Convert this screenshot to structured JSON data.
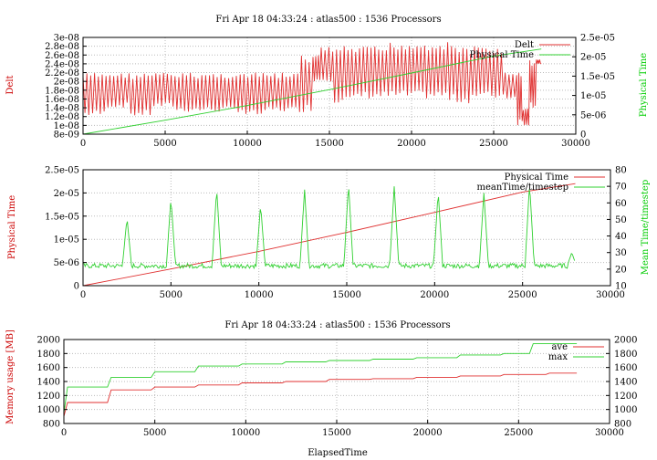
{
  "chart_data": [
    {
      "type": "line",
      "title": "Fri Apr 18 04:33:24 : atlas500 : 1536 Processors",
      "xlabel": "",
      "xlim": [
        0,
        30000
      ],
      "xticks": [
        "0",
        "5000",
        "10000",
        "15000",
        "20000",
        "25000",
        "30000"
      ],
      "ylabel": "Delt",
      "ylabel_color": "#cc0000",
      "ylim": [
        8e-09,
        3e-08
      ],
      "yticks": [
        "3e-08",
        "2.8e-08",
        "2.6e-08",
        "2.4e-08",
        "2.2e-08",
        "2e-08",
        "1.8e-08",
        "1.6e-08",
        "1.4e-08",
        "1.2e-08",
        "1e-08",
        "8e-09"
      ],
      "y2label": "Physical Time",
      "y2label_color": "#00cc00",
      "y2lim": [
        0,
        2.5e-05
      ],
      "y2ticks": [
        "2.5e-05",
        "2e-05",
        "1.5e-05",
        "1e-05",
        "5e-06",
        "0"
      ],
      "grid": true,
      "legend_position": "top-right",
      "series": [
        {
          "name": "Delt",
          "axis": "left",
          "color": "#e03030",
          "x": [
            0,
            700,
            1400,
            2100,
            2800,
            3500,
            4200,
            4900,
            5600,
            6300,
            7000,
            7700,
            8400,
            9100,
            9800,
            10500,
            11200,
            11900,
            12600,
            13300,
            14000,
            14500,
            15200,
            15900,
            16600,
            17300,
            18000,
            18700,
            19400,
            20100,
            20800,
            21500,
            22200,
            22900,
            23600,
            24300,
            25000,
            25700,
            26400,
            26800,
            27200,
            27600,
            27900
          ],
          "values": [
            2.2e-08,
            1.2e-08,
            2.2e-08,
            1.4e-08,
            2.2e-08,
            1.2e-08,
            2.2e-08,
            1.4e-08,
            2.2e-08,
            1.3e-08,
            2.2e-08,
            1.3e-08,
            2.2e-08,
            1.3e-08,
            2.2e-08,
            1.2e-08,
            2.2e-08,
            1.3e-08,
            2.2e-08,
            1.3e-08,
            2.6e-08,
            2e-08,
            2.8e-08,
            1.5e-08,
            2.8e-08,
            1.6e-08,
            2.8e-08,
            1.6e-08,
            2.9e-08,
            1.6e-08,
            2.9e-08,
            1.6e-08,
            2.9e-08,
            1.5e-08,
            2.8e-08,
            1.6e-08,
            2.8e-08,
            1.6e-08,
            2.2e-08,
            1e-08,
            1.4e-08,
            2.5e-08,
            2.4e-08
          ]
        },
        {
          "name": "Physical Time",
          "axis": "right",
          "color": "#30d030",
          "x": [
            0,
            5000,
            10000,
            15000,
            20000,
            25000,
            27900
          ],
          "values": [
            0,
            3.6e-06,
            7.4e-06,
            1.15e-05,
            1.58e-05,
            2.02e-05,
            2.2e-05
          ]
        }
      ]
    },
    {
      "type": "line",
      "title": "",
      "xlabel": "",
      "xlim": [
        0,
        30000
      ],
      "xticks": [
        "0",
        "5000",
        "10000",
        "15000",
        "20000",
        "25000",
        "30000"
      ],
      "ylabel": "Physical Time",
      "ylabel_color": "#cc0000",
      "ylim": [
        0,
        2.5e-05
      ],
      "yticks": [
        "2.5e-05",
        "2e-05",
        "1.5e-05",
        "1e-05",
        "5e-06",
        "0"
      ],
      "y2label": "Mean Time/timestep",
      "y2label_color": "#00cc00",
      "y2lim": [
        10,
        80
      ],
      "y2ticks": [
        "80",
        "70",
        "60",
        "50",
        "40",
        "30",
        "20",
        "10"
      ],
      "grid": true,
      "legend_position": "top-right",
      "series": [
        {
          "name": "Physical Time",
          "axis": "left",
          "color": "#e03030",
          "x": [
            0,
            5000,
            10000,
            15000,
            20000,
            25000,
            28000
          ],
          "values": [
            0,
            3.6e-06,
            7.4e-06,
            1.15e-05,
            1.58e-05,
            2.02e-05,
            2.2e-05
          ]
        },
        {
          "name": "meanTime/timestep",
          "axis": "right",
          "color": "#30d030",
          "baseline": 22,
          "spikes": [
            {
              "x": 2500,
              "peak": 51
            },
            {
              "x": 5000,
              "peak": 63
            },
            {
              "x": 7600,
              "peak": 69
            },
            {
              "x": 10100,
              "peak": 59
            },
            {
              "x": 12600,
              "peak": 68
            },
            {
              "x": 15100,
              "peak": 72
            },
            {
              "x": 17700,
              "peak": 70
            },
            {
              "x": 20200,
              "peak": 67
            },
            {
              "x": 22800,
              "peak": 66
            },
            {
              "x": 25400,
              "peak": 72
            },
            {
              "x": 27800,
              "peak": 30
            }
          ],
          "x_end": 28000
        }
      ]
    },
    {
      "type": "line",
      "title": "Fri Apr 18 04:33:24 : atlas500 : 1536 Processors",
      "xlabel": "ElapsedTime",
      "xlim": [
        0,
        30000
      ],
      "xticks": [
        "0",
        "5000",
        "10000",
        "15000",
        "20000",
        "25000",
        "30000"
      ],
      "ylabel": "Memory usage [MB]",
      "ylabel_color": "#cc0000",
      "ylim": [
        800,
        2000
      ],
      "yticks": [
        "2000",
        "1800",
        "1600",
        "1400",
        "1200",
        "1000",
        "800"
      ],
      "y2ticks": [
        "2000",
        "1800",
        "1600",
        "1400",
        "1200",
        "1000",
        "800"
      ],
      "grid": true,
      "legend_position": "top-right",
      "series": [
        {
          "name": "ave",
          "color": "#e03030",
          "x": [
            0,
            200,
            2400,
            2600,
            4800,
            5000,
            7200,
            7400,
            9600,
            9800,
            12000,
            12200,
            14400,
            14600,
            16800,
            17000,
            19200,
            19400,
            21600,
            21800,
            24000,
            24200,
            26500,
            26700,
            28200
          ],
          "values": [
            900,
            1100,
            1100,
            1280,
            1280,
            1320,
            1320,
            1350,
            1350,
            1380,
            1380,
            1400,
            1400,
            1430,
            1430,
            1440,
            1440,
            1460,
            1460,
            1480,
            1480,
            1500,
            1500,
            1520,
            1520
          ]
        },
        {
          "name": "max",
          "color": "#30d030",
          "x": [
            0,
            200,
            2400,
            2600,
            4800,
            5000,
            7200,
            7400,
            9600,
            9800,
            12000,
            12200,
            14400,
            14600,
            16800,
            17000,
            19200,
            19400,
            21600,
            21800,
            24000,
            24200,
            25600,
            25800,
            28200
          ],
          "values": [
            950,
            1320,
            1320,
            1460,
            1460,
            1540,
            1540,
            1620,
            1620,
            1650,
            1650,
            1680,
            1680,
            1700,
            1700,
            1720,
            1720,
            1740,
            1740,
            1780,
            1780,
            1800,
            1800,
            1940,
            1940
          ]
        }
      ]
    }
  ]
}
